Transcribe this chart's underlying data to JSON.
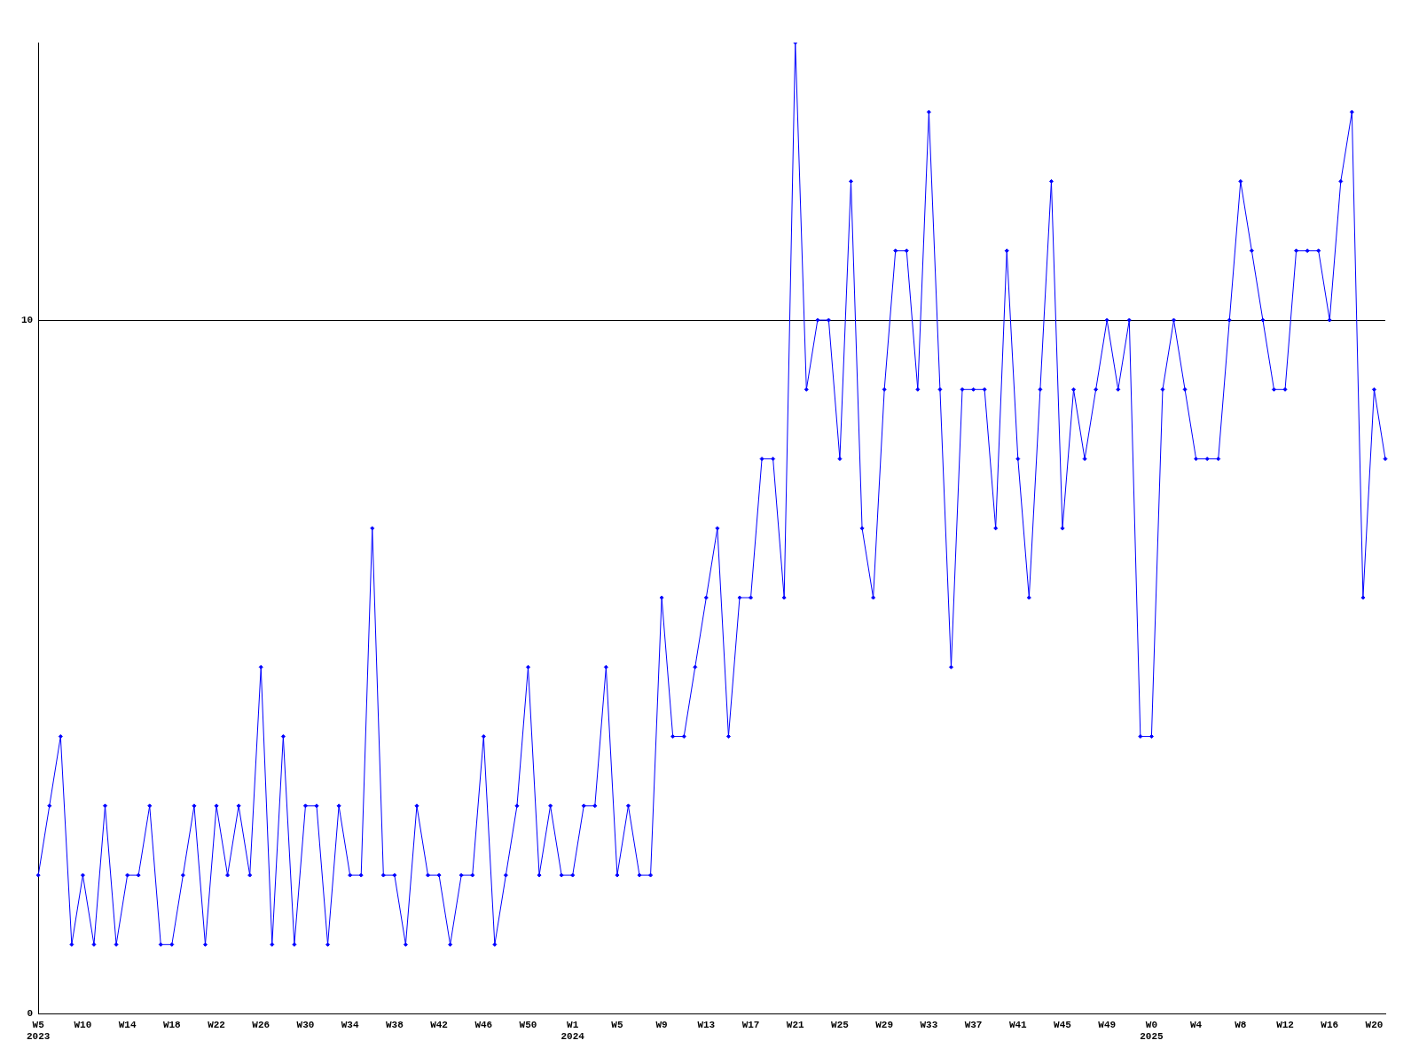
{
  "chart_data": {
    "type": "line",
    "categories": [
      "W5\n2023",
      null,
      null,
      null,
      "W10",
      null,
      null,
      null,
      "W14",
      null,
      null,
      null,
      "W18",
      null,
      null,
      null,
      "W22",
      null,
      null,
      null,
      "W26",
      null,
      null,
      null,
      "W30",
      null,
      null,
      null,
      "W34",
      null,
      null,
      null,
      "W38",
      null,
      null,
      null,
      "W42",
      null,
      null,
      null,
      "W46",
      null,
      null,
      null,
      "W50",
      null,
      null,
      null,
      "W1\n2024",
      null,
      null,
      null,
      "W5",
      null,
      null,
      null,
      "W9",
      null,
      null,
      null,
      "W13",
      null,
      null,
      null,
      "W17",
      null,
      null,
      null,
      "W21",
      null,
      null,
      null,
      "W25",
      null,
      null,
      null,
      "W29",
      null,
      null,
      null,
      "W33",
      null,
      null,
      null,
      "W37",
      null,
      null,
      null,
      "W41",
      null,
      null,
      null,
      "W45",
      null,
      null,
      null,
      "W49",
      null,
      null,
      null,
      "W0\n2025",
      null,
      null,
      null,
      "W4",
      null,
      null,
      null,
      "W8",
      null,
      null,
      null,
      "W12",
      null,
      null,
      null,
      "W16",
      null,
      null,
      null,
      "W20",
      null
    ],
    "series": [
      {
        "color": "#0000ff",
        "values": [
          2,
          3,
          4,
          1,
          2,
          1,
          3,
          1,
          2,
          2,
          3,
          1,
          1,
          2,
          3,
          1,
          3,
          2,
          3,
          2,
          5,
          1,
          4,
          1,
          3,
          3,
          1,
          3,
          2,
          2,
          7,
          2,
          2,
          1,
          3,
          2,
          2,
          1,
          2,
          2,
          4,
          1,
          2,
          3,
          5,
          2,
          3,
          2,
          2,
          3,
          3,
          5,
          2,
          3,
          2,
          2,
          6,
          4,
          4,
          5,
          6,
          7,
          4,
          6,
          6,
          8,
          8,
          6,
          14,
          9,
          10,
          10,
          8,
          12,
          7,
          6,
          9,
          11,
          11,
          9,
          13,
          9,
          5,
          9,
          9,
          9,
          7,
          11,
          8,
          6,
          9,
          12,
          7,
          9,
          8,
          9,
          10,
          9,
          10,
          4,
          4,
          9,
          10,
          9,
          8,
          8,
          8,
          10,
          12,
          11,
          10,
          9,
          9,
          11,
          11,
          11,
          10,
          12,
          13,
          6,
          9,
          8
        ]
      }
    ],
    "ylim": [
      0,
      14
    ],
    "yticks": [
      0,
      10
    ],
    "grid": "y",
    "marker": "diamond",
    "line_style": "solid",
    "legend": false
  }
}
